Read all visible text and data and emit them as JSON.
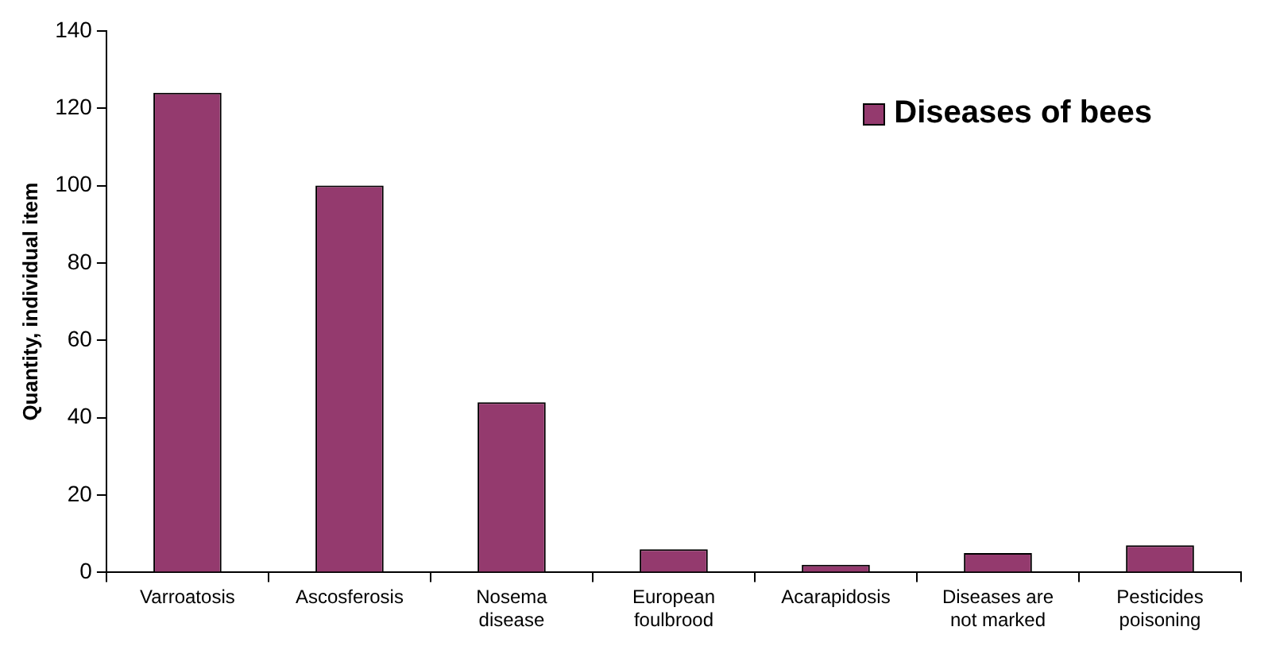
{
  "chart_data": {
    "type": "bar",
    "ylabel": "Quantity, individual item",
    "categories": [
      "Varroatosis",
      "Ascosferosis",
      "Nosema disease",
      "European foulbrood",
      "Acarapidosis",
      "Diseases are not marked",
      "Pesticides poisoning"
    ],
    "series": [
      {
        "name": "Diseases of bees",
        "color": "#943a6e",
        "values": [
          124,
          100,
          44,
          6,
          2,
          5,
          7
        ]
      }
    ],
    "ylim": [
      0,
      140
    ],
    "yticks": [
      0,
      20,
      40,
      60,
      80,
      100,
      120,
      140
    ],
    "grid": false,
    "legend": "top right"
  }
}
